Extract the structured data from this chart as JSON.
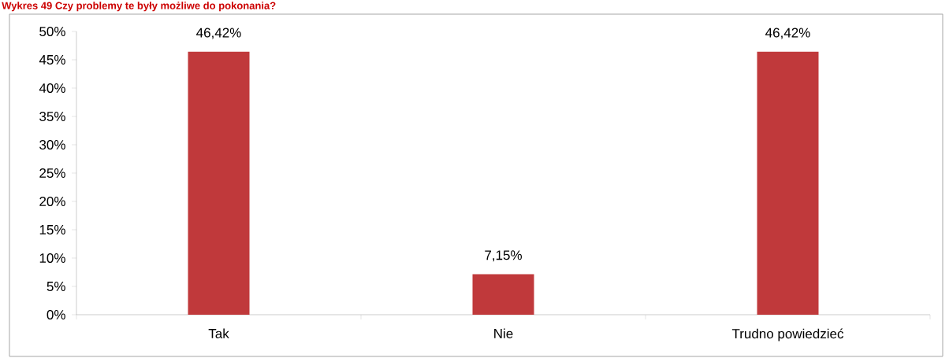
{
  "chart_data": {
    "type": "bar",
    "title": "Wykres 49 Czy problemy te były możliwe do pokonania?",
    "categories": [
      "Tak",
      "Nie",
      "Trudno powiedzieć"
    ],
    "values": [
      46.42,
      7.15,
      46.42
    ],
    "value_labels": [
      "46,42%",
      "7,15%",
      "46,42%"
    ],
    "color": "#c0393b",
    "ylim": [
      0,
      50
    ],
    "yticks": [
      {
        "value": 0,
        "label": "0%"
      },
      {
        "value": 5,
        "label": "5%"
      },
      {
        "value": 10,
        "label": "10%"
      },
      {
        "value": 15,
        "label": "15%"
      },
      {
        "value": 20,
        "label": "20%"
      },
      {
        "value": 25,
        "label": "25%"
      },
      {
        "value": 30,
        "label": "30%"
      },
      {
        "value": 35,
        "label": "35%"
      },
      {
        "value": 40,
        "label": "40%"
      },
      {
        "value": 45,
        "label": "45%"
      },
      {
        "value": 50,
        "label": "50%"
      }
    ],
    "grid": false
  }
}
